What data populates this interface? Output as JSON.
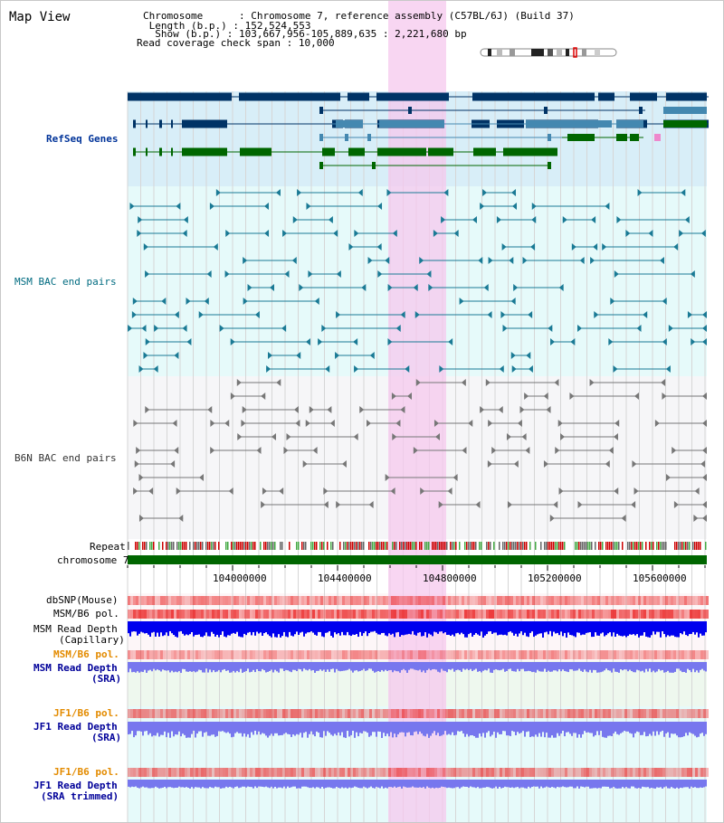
{
  "title": "Map View",
  "header": {
    "chromosome_key": "Chromosome      ",
    "chromosome_val": "Chromosome 7, reference assembly (C57BL/6J) (Build 37)",
    "length_key": " Length (b.p.) ",
    "length_val": "152,524,553",
    "show_key": "  Show (b.p.) ",
    "show_val": "103,667,956-105,889,635 : 2,221,680 bp",
    "span_key": "Read coverage check span",
    "span_val": "10,000"
  },
  "tracks": {
    "refseq": "RefSeq Genes",
    "msm_bac": "MSM BAC end pairs",
    "b6n_bac": "B6N BAC end pairs",
    "repeat": "Repeat",
    "chromosome": "chromosome 7",
    "dbsnp": "dbSNP(Mouse)",
    "msm_b6_pol_1": "MSM/B6 pol.",
    "msm_read_depth_cap_1": "MSM Read Depth",
    "msm_read_depth_cap_2": "(Capillary)",
    "msm_b6_pol_2": "MSM/B6 pol.",
    "msm_read_depth_sra_1": "MSM Read Depth",
    "msm_read_depth_sra_2": "(SRA)",
    "jf1_b6_pol_1": "JF1/B6 pol.",
    "jf1_read_depth_sra_1": "JF1 Read Depth",
    "jf1_read_depth_sra_2": "(SRA)",
    "jf1_b6_pol_2": "JF1/B6 pol.",
    "jf1_read_depth_trim_1": "JF1 Read Depth",
    "jf1_read_depth_trim_2": "(SRA trimmed)"
  },
  "axis": {
    "ticks": [
      "104000000",
      "104400000",
      "104800000",
      "105200000",
      "105600000"
    ]
  },
  "colors": {
    "highlight": "#f8d4f0",
    "refseq_bg": "#d8eef8",
    "bac_bg": "#e6fafa",
    "b6n_bg": "#f4f4f6",
    "refseq_dark": "#003366",
    "refseq_mid": "#4488b0",
    "refseq_green": "#006600",
    "chromosome_bar": "#006600",
    "depth_blue": "#0000ee",
    "depth_light": "#7777ee"
  }
}
